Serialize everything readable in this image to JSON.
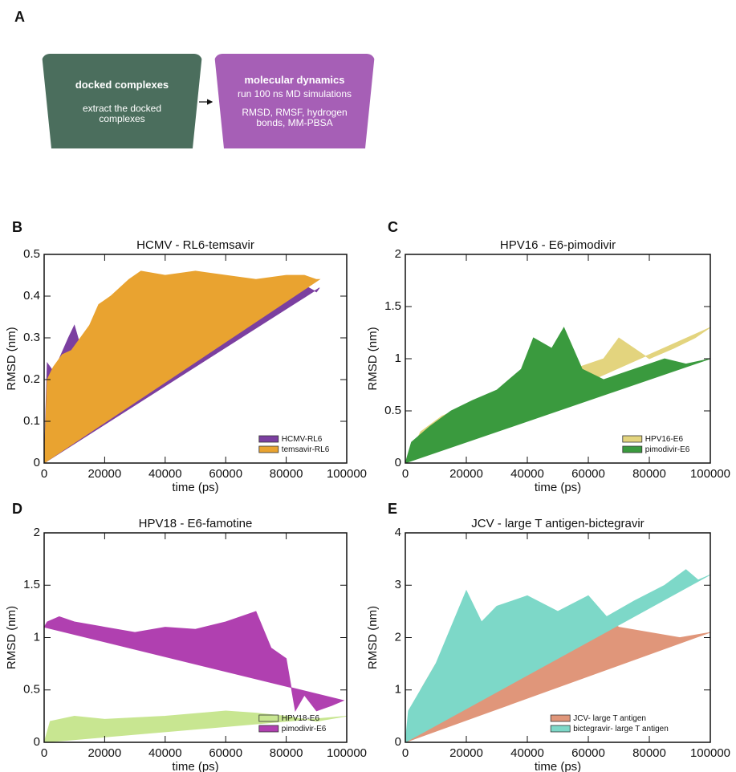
{
  "panel_labels": [
    "A",
    "B",
    "C",
    "D",
    "E"
  ],
  "diagram": {
    "boxes": [
      {
        "title": "docked complexes",
        "lines": [
          "extract the docked complexes"
        ]
      },
      {
        "title": "molecular dynamics",
        "lines": [
          "run 100 ns MD simulations",
          "RMSD, RMSF, hydrogen bonds, MM-PBSA"
        ]
      }
    ]
  },
  "chart_data": [
    {
      "type": "area",
      "title": "HCMV - RL6-temsavir",
      "x_label": "time (ps)",
      "y_label": "RMSD (nm)",
      "xlim": [
        0,
        100000
      ],
      "xticks": [
        0,
        20000,
        40000,
        60000,
        80000,
        100000
      ],
      "ylim": [
        0,
        0.5
      ],
      "yticks": [
        0,
        0.1,
        0.2,
        0.3,
        0.4,
        0.5
      ],
      "legend": "lower right",
      "series": [
        {
          "name": "HCMV-RL6",
          "color": "#7b3fa0",
          "x": [
            0,
            1000,
            3000,
            5000,
            8000,
            10000,
            12000,
            15000,
            20000,
            30000,
            40000,
            50000,
            60000,
            70000,
            80000,
            85000,
            90000,
            91000
          ],
          "values": [
            0,
            0.24,
            0.22,
            0.25,
            0.3,
            0.33,
            0.28,
            0.31,
            0.36,
            0.42,
            0.44,
            0.43,
            0.44,
            0.43,
            0.42,
            0.43,
            0.41,
            0.42
          ]
        },
        {
          "name": "temsavir-RL6",
          "color": "#e9a330",
          "x": [
            0,
            1000,
            3000,
            6000,
            9000,
            12000,
            15000,
            18000,
            22000,
            28000,
            32000,
            40000,
            50000,
            60000,
            70000,
            80000,
            86000,
            90000,
            91000
          ],
          "values": [
            0,
            0.2,
            0.23,
            0.26,
            0.27,
            0.3,
            0.33,
            0.38,
            0.4,
            0.44,
            0.46,
            0.45,
            0.46,
            0.45,
            0.44,
            0.45,
            0.45,
            0.44,
            0.44
          ]
        }
      ]
    },
    {
      "type": "area",
      "title": "HPV16 - E6-pimodivir",
      "x_label": "time (ps)",
      "y_label": "RMSD (nm)",
      "xlim": [
        0,
        100000
      ],
      "xticks": [
        0,
        20000,
        40000,
        60000,
        80000,
        100000
      ],
      "ylim": [
        0,
        2
      ],
      "yticks": [
        0,
        0.5,
        1,
        1.5,
        2
      ],
      "legend": "lower right",
      "series": [
        {
          "name": "HPV16-E6",
          "color": "#e3d47e",
          "x": [
            0,
            5000,
            12000,
            20000,
            30000,
            40000,
            45000,
            55000,
            65000,
            70000,
            80000,
            88000,
            95000,
            100000
          ],
          "values": [
            0,
            0.3,
            0.45,
            0.55,
            0.6,
            0.55,
            0.7,
            0.9,
            1.0,
            1.2,
            1.0,
            1.1,
            1.2,
            1.3
          ]
        },
        {
          "name": "pimodivir-E6",
          "color": "#3a9a3e",
          "x": [
            0,
            2000,
            8000,
            15000,
            22000,
            30000,
            38000,
            42000,
            48000,
            52000,
            58000,
            65000,
            75000,
            85000,
            92000,
            100000
          ],
          "values": [
            0,
            0.2,
            0.35,
            0.5,
            0.6,
            0.7,
            0.9,
            1.2,
            1.1,
            1.3,
            0.9,
            0.8,
            0.9,
            1.0,
            0.95,
            1.0
          ]
        }
      ]
    },
    {
      "type": "area",
      "title": "HPV18 - E6-famotine",
      "x_label": "time (ps)",
      "y_label": "RMSD (nm)",
      "xlim": [
        0,
        100000
      ],
      "xticks": [
        0,
        20000,
        40000,
        60000,
        80000,
        100000
      ],
      "ylim": [
        0,
        2
      ],
      "yticks": [
        0,
        0.5,
        1,
        1.5,
        2
      ],
      "legend": "lower right",
      "series": [
        {
          "name": "HPV18-E6",
          "color": "#c8e691",
          "x": [
            0,
            2000,
            10000,
            20000,
            40000,
            60000,
            70000,
            80000,
            90000,
            100000
          ],
          "values": [
            0,
            0.2,
            0.25,
            0.22,
            0.25,
            0.3,
            0.28,
            0.25,
            0.2,
            0.25
          ]
        },
        {
          "name": "pimodivir-E6",
          "color": "#b040b0",
          "x": [
            0,
            1000,
            5000,
            10000,
            20000,
            30000,
            40000,
            50000,
            60000,
            70000,
            75000,
            80000,
            83000,
            86000,
            90000,
            95000,
            99000
          ],
          "values": [
            1.1,
            1.15,
            1.2,
            1.15,
            1.1,
            1.05,
            1.1,
            1.08,
            1.15,
            1.25,
            0.9,
            0.8,
            0.3,
            0.45,
            0.3,
            0.35,
            0.4
          ]
        }
      ]
    },
    {
      "type": "area",
      "title": "JCV - large T antigen-bictegravir",
      "x_label": "time (ps)",
      "y_label": "RMSD  (nm)",
      "xlim": [
        0,
        100000
      ],
      "xticks": [
        0,
        20000,
        40000,
        60000,
        80000,
        100000
      ],
      "ylim": [
        0,
        4
      ],
      "yticks": [
        0,
        1,
        2,
        3,
        4
      ],
      "legend": "lower right",
      "series": [
        {
          "name": "JCV- large T antigen",
          "color": "#e0967a",
          "x": [
            0,
            2000,
            5000,
            10000,
            15000,
            20000,
            30000,
            40000,
            55000,
            65000,
            70000,
            80000,
            90000,
            100000
          ],
          "values": [
            0,
            0.5,
            1.0,
            1.5,
            1.8,
            2.0,
            2.2,
            2.0,
            2.3,
            2.4,
            2.2,
            2.1,
            2.0,
            2.1
          ]
        },
        {
          "name": "bictegravir- large T antigen",
          "color": "#7dd8c8",
          "x": [
            0,
            1000,
            5000,
            10000,
            15000,
            20000,
            25000,
            30000,
            40000,
            50000,
            60000,
            66000,
            75000,
            85000,
            92000,
            96000,
            100000
          ],
          "values": [
            0,
            0.6,
            1.0,
            1.5,
            2.2,
            2.9,
            2.3,
            2.6,
            2.8,
            2.5,
            2.8,
            2.4,
            2.7,
            3.0,
            3.3,
            3.1,
            3.2
          ]
        }
      ]
    }
  ]
}
